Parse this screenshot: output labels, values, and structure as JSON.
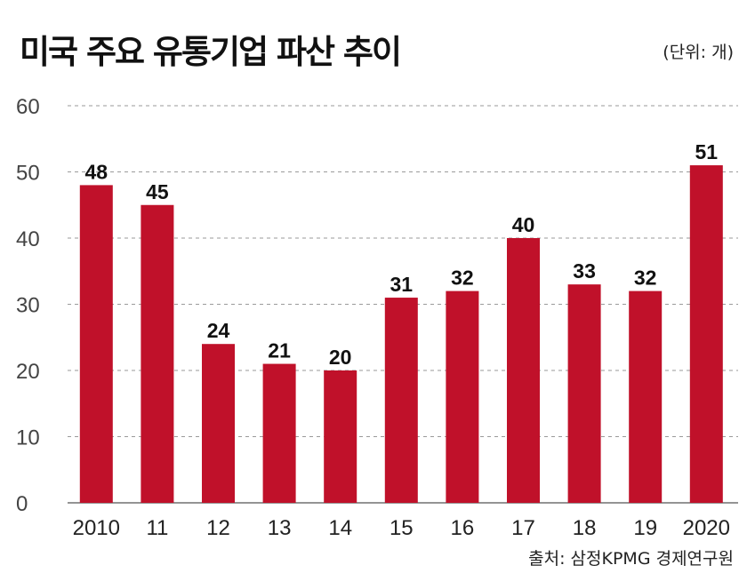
{
  "title": "미국 주요 유통기업 파산 추이",
  "unit_note": "(단위: 개)",
  "source_note": "출처: 삼정KPMG 경제연구원",
  "colors": {
    "bar": "#C0112A",
    "grid": "#9a9a9a",
    "axis_text": "#444444",
    "label_text": "#111111"
  },
  "chart_data": {
    "type": "bar",
    "title": "미국 주요 유통기업 파산 추이",
    "xlabel": "",
    "ylabel": "",
    "ylim": [
      0,
      60
    ],
    "yticks": [
      0,
      10,
      20,
      30,
      40,
      50,
      60
    ],
    "grid": true,
    "categories": [
      "2010",
      "11",
      "12",
      "13",
      "14",
      "15",
      "16",
      "17",
      "18",
      "19",
      "2020"
    ],
    "values": [
      48,
      45,
      24,
      21,
      20,
      31,
      32,
      40,
      33,
      32,
      51
    ]
  }
}
